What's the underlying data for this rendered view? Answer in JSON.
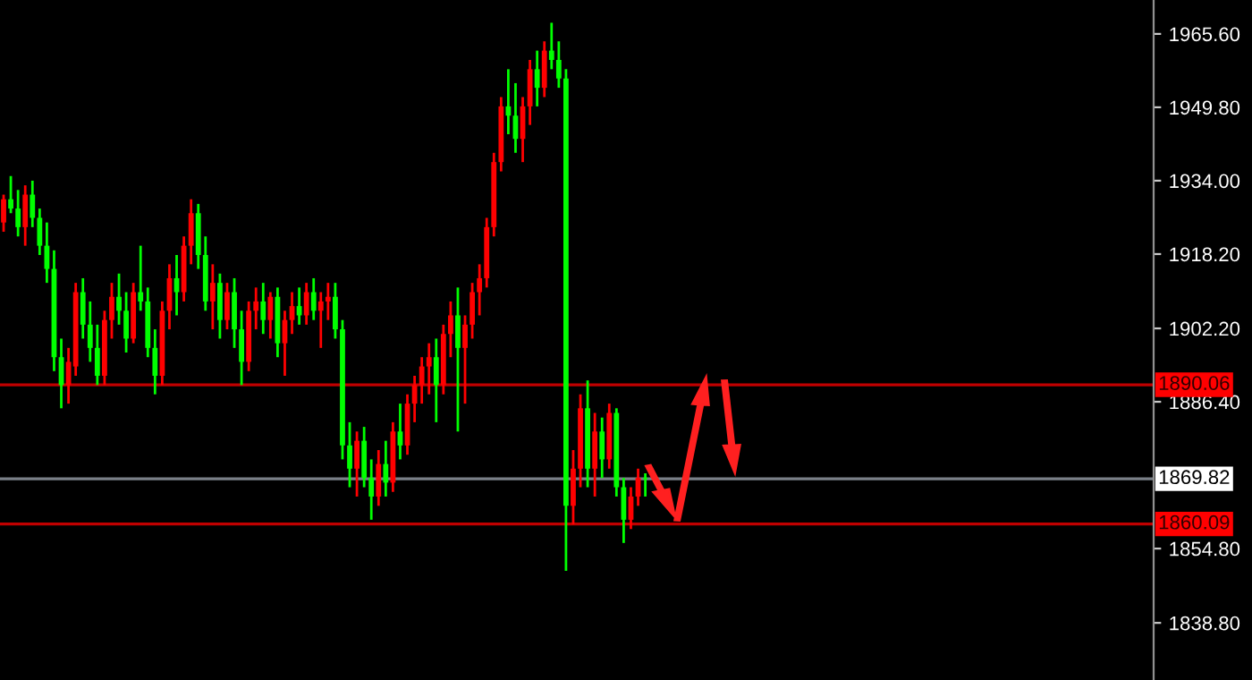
{
  "chart_data": {
    "type": "candlestick",
    "categories": [
      null,
      null,
      null,
      null,
      null,
      null,
      null,
      null,
      null,
      null,
      null,
      null,
      null,
      null,
      null,
      null,
      null,
      null,
      null,
      null,
      null,
      null,
      null,
      null,
      null,
      null,
      null,
      null,
      null,
      null,
      null,
      null,
      null,
      null,
      null,
      null,
      null,
      null,
      null,
      null,
      null,
      null,
      null,
      null,
      null,
      null,
      null,
      null,
      null,
      null,
      null,
      null,
      null,
      null,
      null,
      null,
      null,
      null,
      null,
      null,
      null,
      null,
      null,
      null,
      null,
      null,
      null,
      null,
      null,
      null,
      null,
      null,
      null,
      null,
      null,
      null,
      null,
      null,
      null,
      null,
      null,
      null,
      null,
      null,
      null,
      null,
      null,
      null,
      null,
      null,
      null,
      null,
      null,
      null,
      null,
      null,
      null,
      null,
      null,
      null,
      null,
      null,
      null,
      null,
      null,
      null,
      null,
      null,
      null,
      null,
      null,
      null,
      null,
      null,
      null,
      null,
      null,
      null,
      null,
      null,
      null,
      null,
      null,
      null,
      null,
      null,
      null,
      null,
      null,
      null,
      null,
      null,
      null,
      null,
      null,
      null,
      null,
      null,
      null,
      null,
      null,
      null,
      null,
      null,
      null,
      null,
      null,
      null,
      null,
      null,
      null,
      null,
      null,
      null,
      null,
      null,
      null,
      null,
      null,
      null
    ],
    "ohlc": [
      [
        1925,
        1931,
        1923,
        1930
      ],
      [
        1930,
        1935,
        1927,
        1928
      ],
      [
        1928,
        1932,
        1922,
        1924
      ],
      [
        1924,
        1933,
        1920,
        1931
      ],
      [
        1931,
        1934,
        1924,
        1926
      ],
      [
        1926,
        1928,
        1918,
        1920
      ],
      [
        1920,
        1925,
        1912,
        1915
      ],
      [
        1915,
        1919,
        1893,
        1896
      ],
      [
        1896,
        1900,
        1885,
        1890
      ],
      [
        1890,
        1898,
        1886,
        1895
      ],
      [
        1894,
        1912,
        1892,
        1910
      ],
      [
        1910,
        1913,
        1900,
        1903
      ],
      [
        1903,
        1908,
        1895,
        1898
      ],
      [
        1898,
        1903,
        1890,
        1892
      ],
      [
        1892,
        1906,
        1890,
        1904
      ],
      [
        1904,
        1912,
        1900,
        1909
      ],
      [
        1909,
        1914,
        1903,
        1906
      ],
      [
        1906,
        1910,
        1897,
        1900
      ],
      [
        1900,
        1912,
        1899,
        1910
      ],
      [
        1910,
        1920,
        1906,
        1908
      ],
      [
        1908,
        1911,
        1896,
        1898
      ],
      [
        1898,
        1902,
        1888,
        1892
      ],
      [
        1892,
        1908,
        1890,
        1906
      ],
      [
        1906,
        1916,
        1902,
        1913
      ],
      [
        1913,
        1918,
        1905,
        1910
      ],
      [
        1910,
        1922,
        1908,
        1920
      ],
      [
        1920,
        1930,
        1916,
        1927
      ],
      [
        1927,
        1929,
        1915,
        1918
      ],
      [
        1918,
        1922,
        1906,
        1908
      ],
      [
        1908,
        1916,
        1902,
        1912
      ],
      [
        1912,
        1914,
        1900,
        1904
      ],
      [
        1904,
        1912,
        1902,
        1910
      ],
      [
        1910,
        1913,
        1898,
        1902
      ],
      [
        1902,
        1906,
        1890,
        1895
      ],
      [
        1895,
        1908,
        1893,
        1906
      ],
      [
        1906,
        1911,
        1902,
        1908
      ],
      [
        1908,
        1912,
        1901,
        1904
      ],
      [
        1904,
        1910,
        1900,
        1909
      ],
      [
        1909,
        1911,
        1896,
        1899
      ],
      [
        1899,
        1906,
        1892,
        1904
      ],
      [
        1904,
        1910,
        1901,
        1907
      ],
      [
        1907,
        1911,
        1903,
        1905
      ],
      [
        1905,
        1912,
        1903,
        1910
      ],
      [
        1910,
        1913,
        1904,
        1906
      ],
      [
        1906,
        1910,
        1898,
        1908
      ],
      [
        1908,
        1912,
        1904,
        1909
      ],
      [
        1909,
        1912,
        1900,
        1902
      ],
      [
        1902,
        1904,
        1874,
        1877
      ],
      [
        1877,
        1882,
        1868,
        1872
      ],
      [
        1872,
        1880,
        1866,
        1878
      ],
      [
        1878,
        1881,
        1868,
        1870
      ],
      [
        1870,
        1874,
        1861,
        1866
      ],
      [
        1866,
        1876,
        1864,
        1873
      ],
      [
        1873,
        1878,
        1866,
        1869
      ],
      [
        1869,
        1882,
        1867,
        1880
      ],
      [
        1880,
        1886,
        1874,
        1877
      ],
      [
        1877,
        1888,
        1875,
        1886
      ],
      [
        1886,
        1892,
        1882,
        1890
      ],
      [
        1890,
        1896,
        1886,
        1894
      ],
      [
        1894,
        1899,
        1888,
        1896
      ],
      [
        1896,
        1900,
        1882,
        1890
      ],
      [
        1890,
        1903,
        1888,
        1901
      ],
      [
        1901,
        1908,
        1896,
        1905
      ],
      [
        1905,
        1911,
        1880,
        1898
      ],
      [
        1898,
        1905,
        1886,
        1903
      ],
      [
        1903,
        1912,
        1900,
        1910
      ],
      [
        1910,
        1916,
        1905,
        1913
      ],
      [
        1913,
        1926,
        1911,
        1924
      ],
      [
        1924,
        1940,
        1922,
        1938
      ],
      [
        1938,
        1952,
        1936,
        1950
      ],
      [
        1950,
        1958,
        1944,
        1948
      ],
      [
        1948,
        1955,
        1940,
        1943
      ],
      [
        1943,
        1952,
        1938,
        1950
      ],
      [
        1950,
        1960,
        1946,
        1958
      ],
      [
        1958,
        1962,
        1950,
        1954
      ],
      [
        1954,
        1964,
        1952,
        1962
      ],
      [
        1962,
        1968,
        1958,
        1960
      ],
      [
        1960,
        1964,
        1954,
        1956
      ],
      [
        1956,
        1958,
        1850,
        1864
      ],
      [
        1864,
        1876,
        1860,
        1872
      ],
      [
        1872,
        1888,
        1868,
        1885
      ],
      [
        1885,
        1891,
        1868,
        1872
      ],
      [
        1872,
        1884,
        1866,
        1880
      ],
      [
        1880,
        1883,
        1870,
        1874
      ],
      [
        1874,
        1886,
        1872,
        1884
      ],
      [
        1884,
        1885,
        1866,
        1868
      ],
      [
        1868,
        1870,
        1856,
        1861
      ],
      [
        1861,
        1868,
        1859,
        1866
      ],
      [
        1866,
        1872,
        1864,
        1870
      ],
      [
        1870,
        1871,
        1866,
        1869.82
      ],
      null,
      null,
      null,
      null,
      null,
      null,
      null,
      null,
      null,
      null,
      null,
      null,
      null,
      null,
      null,
      null,
      null,
      null,
      null,
      null,
      null,
      null,
      null,
      null,
      null,
      null,
      null,
      null,
      null,
      null,
      null,
      null,
      null,
      null,
      null,
      null,
      null,
      null,
      null,
      null,
      null,
      null,
      null,
      null,
      null,
      null,
      null,
      null,
      null,
      null,
      null,
      null,
      null,
      null,
      null,
      null,
      null,
      null,
      null,
      null,
      null,
      null,
      null,
      null,
      null,
      null,
      null,
      null,
      null,
      null
    ],
    "colors": [
      "#ff0000",
      "#00ff00",
      "#00ff00",
      "#ff0000",
      "#00ff00",
      "#00ff00",
      "#00ff00",
      "#00ff00",
      "#00ff00",
      "#ff0000",
      "#ff0000",
      "#00ff00",
      "#00ff00",
      "#00ff00",
      "#ff0000",
      "#ff0000",
      "#00ff00",
      "#00ff00",
      "#ff0000",
      "#00ff00",
      "#00ff00",
      "#00ff00",
      "#ff0000",
      "#ff0000",
      "#00ff00",
      "#ff0000",
      "#ff0000",
      "#00ff00",
      "#00ff00",
      "#ff0000",
      "#00ff00",
      "#ff0000",
      "#00ff00",
      "#00ff00",
      "#ff0000",
      "#ff0000",
      "#00ff00",
      "#ff0000",
      "#00ff00",
      "#ff0000",
      "#ff0000",
      "#00ff00",
      "#ff0000",
      "#00ff00",
      "#ff0000",
      "#ff0000",
      "#00ff00",
      "#00ff00",
      "#00ff00",
      "#ff0000",
      "#00ff00",
      "#00ff00",
      "#ff0000",
      "#00ff00",
      "#ff0000",
      "#00ff00",
      "#ff0000",
      "#ff0000",
      "#ff0000",
      "#ff0000",
      "#00ff00",
      "#ff0000",
      "#ff0000",
      "#00ff00",
      "#ff0000",
      "#ff0000",
      "#ff0000",
      "#ff0000",
      "#ff0000",
      "#ff0000",
      "#00ff00",
      "#00ff00",
      "#ff0000",
      "#ff0000",
      "#00ff00",
      "#ff0000",
      "#00ff00",
      "#00ff00",
      "#00ff00",
      "#ff0000",
      "#ff0000",
      "#00ff00",
      "#ff0000",
      "#00ff00",
      "#ff0000",
      "#00ff00",
      "#00ff00",
      "#ff0000",
      "#ff0000",
      "#00ff00",
      null,
      null,
      null,
      null,
      null,
      null,
      null,
      null,
      null,
      null,
      null,
      null,
      null,
      null,
      null,
      null,
      null,
      null,
      null,
      null,
      null,
      null,
      null,
      null,
      null,
      null,
      null,
      null,
      null,
      null,
      null,
      null,
      null,
      null,
      null,
      null,
      null,
      null,
      null,
      null,
      null,
      null,
      null,
      null,
      null,
      null,
      null,
      null,
      null,
      null,
      null,
      null,
      null,
      null,
      null,
      null,
      null,
      null,
      null,
      null,
      null,
      null,
      null,
      null,
      null,
      null,
      null,
      null,
      null,
      null
    ],
    "ylim": [
      1826.5,
      1972.9
    ],
    "yticks": [
      {
        "value": 1965.6,
        "label": "1965.60"
      },
      {
        "value": 1949.8,
        "label": "1949.80"
      },
      {
        "value": 1934.0,
        "label": "1934.00"
      },
      {
        "value": 1918.2,
        "label": "1918.20"
      },
      {
        "value": 1902.2,
        "label": "1902.20"
      },
      {
        "value": 1886.4,
        "label": "1886.40"
      },
      {
        "value": 1854.8,
        "label": "1854.80"
      },
      {
        "value": 1838.8,
        "label": "1838.80"
      }
    ],
    "ref_lines": [
      {
        "axis": "y",
        "value": 1890.06,
        "label": "1890.06",
        "color": "#c00000"
      },
      {
        "axis": "y",
        "value": 1869.82,
        "label": "1869.82",
        "color": "#7a8088"
      },
      {
        "axis": "y",
        "value": 1860.09,
        "label": "1860.09",
        "color": "#c00000"
      }
    ],
    "grid": false,
    "legend": false
  }
}
